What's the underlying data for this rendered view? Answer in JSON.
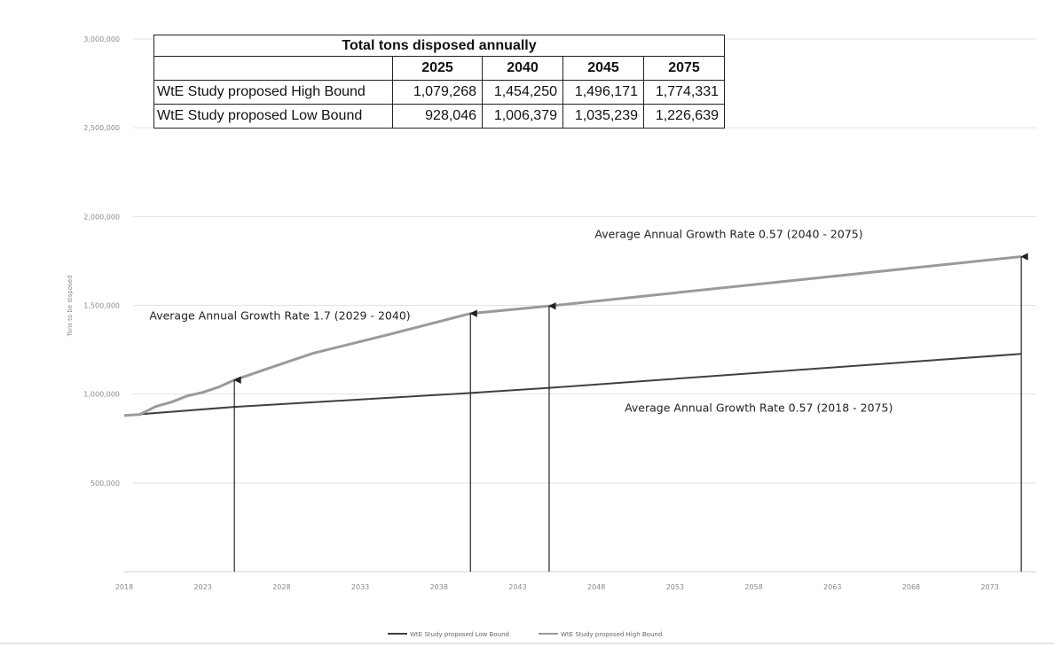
{
  "table": {
    "title": "Total tons disposed annually",
    "years": [
      "2025",
      "2040",
      "2045",
      "2075"
    ],
    "rows": [
      {
        "label": "WtE Study proposed High Bound",
        "values": [
          "1,079,268",
          "1,454,250",
          "1,496,171",
          "1,774,331"
        ]
      },
      {
        "label": "WtE Study proposed Low Bound",
        "values": [
          "928,046",
          "1,006,379",
          "1,035,239",
          "1,226,639"
        ]
      }
    ]
  },
  "chart_data": {
    "type": "line",
    "ylabel": "Tons to be disposed",
    "ylim": [
      0,
      3000000
    ],
    "xlim": [
      2018,
      2075
    ],
    "grid": true,
    "legend_position": "bottom",
    "y_ticks": [
      {
        "value": 3000000,
        "label": "3,000,000"
      },
      {
        "value": 2500000,
        "label": "2,500,000"
      },
      {
        "value": 2000000,
        "label": "2,000,000"
      },
      {
        "value": 1500000,
        "label": "1,500,000"
      },
      {
        "value": 1000000,
        "label": "1,000,000"
      },
      {
        "value": 500000,
        "label": "500,000"
      }
    ],
    "x_ticks": [
      {
        "value": 2018,
        "label": "2018"
      },
      {
        "value": 2023,
        "label": "2023"
      },
      {
        "value": 2028,
        "label": "2028"
      },
      {
        "value": 2033,
        "label": "2033"
      },
      {
        "value": 2038,
        "label": "2038"
      },
      {
        "value": 2043,
        "label": "2043"
      },
      {
        "value": 2048,
        "label": "2048"
      },
      {
        "value": 2053,
        "label": "2053"
      },
      {
        "value": 2058,
        "label": "2058"
      },
      {
        "value": 2063,
        "label": "2063"
      },
      {
        "value": 2068,
        "label": "2068"
      },
      {
        "value": 2073,
        "label": "2073"
      }
    ],
    "series": [
      {
        "name": "WtE Study proposed Low Bound",
        "color": "#404040",
        "x": [
          2018,
          2025,
          2040,
          2045,
          2075
        ],
        "y": [
          880000,
          928046,
          1006379,
          1035239,
          1226639
        ]
      },
      {
        "name": "WtE Study proposed High Bound",
        "color": "#9a9a9a",
        "x": [
          2018,
          2019,
          2020,
          2021,
          2022,
          2023,
          2024,
          2025,
          2027,
          2029,
          2030,
          2035,
          2040,
          2045,
          2075
        ],
        "y": [
          880000,
          885000,
          930000,
          955000,
          990000,
          1010000,
          1040000,
          1079268,
          1140000,
          1200000,
          1230000,
          1340000,
          1454250,
          1496171,
          1774331
        ]
      }
    ],
    "markers": [
      {
        "x": 2025,
        "y": 1079268
      },
      {
        "x": 2040,
        "y": 1454250
      },
      {
        "x": 2045,
        "y": 1496171
      },
      {
        "x": 2075,
        "y": 1774331
      }
    ],
    "annotations": [
      {
        "text": "Average Annual Growth Rate 1.7 (2029 - 2040)",
        "x": 2019.6,
        "y": 1420000
      },
      {
        "text": "Average Annual Growth Rate 0.57 (2040 - 2075)",
        "x": 2047.9,
        "y": 1880000
      },
      {
        "text": "Average Annual Growth Rate 0.57 (2018 - 2075)",
        "x": 2049.8,
        "y": 900000
      }
    ]
  }
}
